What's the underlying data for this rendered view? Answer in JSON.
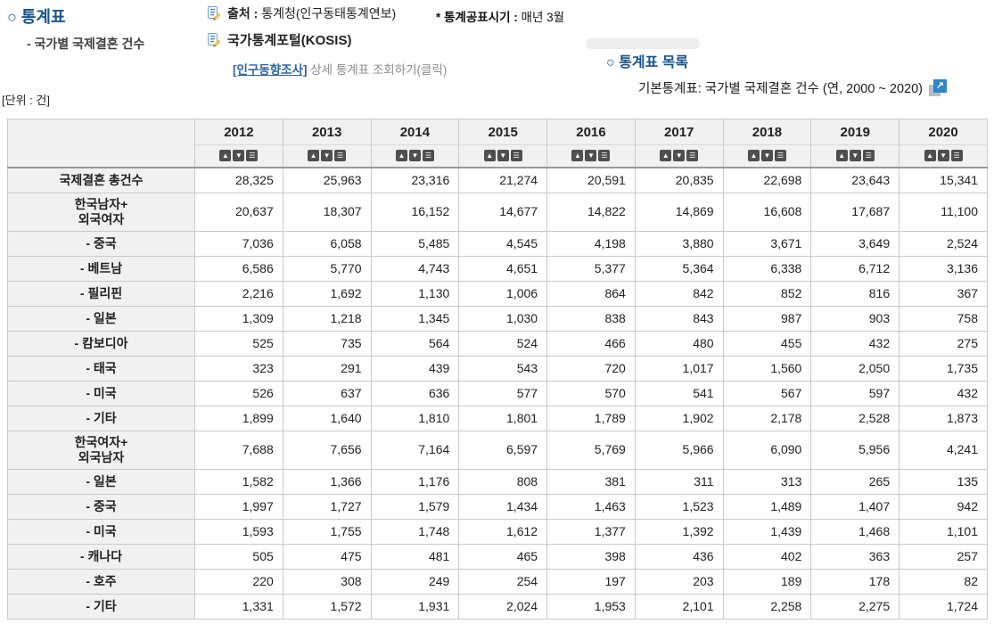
{
  "header": {
    "title": "○ 통계표",
    "subtitle": "- 국가별 국제결혼 건수",
    "source_label": "출처 :",
    "source_value": "통계청(인구동태통계연보)",
    "publish_label": "* 통계공표시기 :",
    "publish_value": "매년 3월",
    "portal_label": "국가통계포털(KOSIS)",
    "survey_link": "[인구동향조사]",
    "survey_link_suffix": " 상세 통계표 조회하기(클릭)",
    "list_title": "○ 통계표 목록",
    "list_item": "기본통계표: 국가별 국제결혼 건수 (연, 2000 ~ 2020)",
    "unit": "[단위 : 건]"
  },
  "icons": {
    "external_link_glyph": "↗"
  },
  "colors": {
    "title_blue": "#17558c",
    "link_blue": "#2e64a0",
    "header_bg": "#f1f1f1",
    "ext_icon_blue": "#2f86c8"
  },
  "table": {
    "years": [
      "2012",
      "2013",
      "2014",
      "2015",
      "2016",
      "2017",
      "2018",
      "2019",
      "2020"
    ],
    "sort_glyphs": [
      "▲",
      "▼",
      "☰"
    ],
    "rows": [
      {
        "label": "국제결혼 총건수",
        "values": [
          "28,325",
          "25,963",
          "23,316",
          "21,274",
          "20,591",
          "20,835",
          "22,698",
          "23,643",
          "15,341"
        ]
      },
      {
        "label": "한국남자+\n외국여자",
        "values": [
          "20,637",
          "18,307",
          "16,152",
          "14,677",
          "14,822",
          "14,869",
          "16,608",
          "17,687",
          "11,100"
        ]
      },
      {
        "label": "- 중국",
        "values": [
          "7,036",
          "6,058",
          "5,485",
          "4,545",
          "4,198",
          "3,880",
          "3,671",
          "3,649",
          "2,524"
        ]
      },
      {
        "label": "- 베트남",
        "values": [
          "6,586",
          "5,770",
          "4,743",
          "4,651",
          "5,377",
          "5,364",
          "6,338",
          "6,712",
          "3,136"
        ]
      },
      {
        "label": "- 필리핀",
        "values": [
          "2,216",
          "1,692",
          "1,130",
          "1,006",
          "864",
          "842",
          "852",
          "816",
          "367"
        ]
      },
      {
        "label": "- 일본",
        "values": [
          "1,309",
          "1,218",
          "1,345",
          "1,030",
          "838",
          "843",
          "987",
          "903",
          "758"
        ]
      },
      {
        "label": "- 캄보디아",
        "values": [
          "525",
          "735",
          "564",
          "524",
          "466",
          "480",
          "455",
          "432",
          "275"
        ]
      },
      {
        "label": "- 태국",
        "values": [
          "323",
          "291",
          "439",
          "543",
          "720",
          "1,017",
          "1,560",
          "2,050",
          "1,735"
        ]
      },
      {
        "label": "- 미국",
        "values": [
          "526",
          "637",
          "636",
          "577",
          "570",
          "541",
          "567",
          "597",
          "432"
        ]
      },
      {
        "label": "- 기타",
        "values": [
          "1,899",
          "1,640",
          "1,810",
          "1,801",
          "1,789",
          "1,902",
          "2,178",
          "2,528",
          "1,873"
        ]
      },
      {
        "label": "한국여자+\n외국남자",
        "values": [
          "7,688",
          "7,656",
          "7,164",
          "6,597",
          "5,769",
          "5,966",
          "6,090",
          "5,956",
          "4,241"
        ]
      },
      {
        "label": "- 일본",
        "values": [
          "1,582",
          "1,366",
          "1,176",
          "808",
          "381",
          "311",
          "313",
          "265",
          "135"
        ]
      },
      {
        "label": "- 중국",
        "values": [
          "1,997",
          "1,727",
          "1,579",
          "1,434",
          "1,463",
          "1,523",
          "1,489",
          "1,407",
          "942"
        ]
      },
      {
        "label": "- 미국",
        "values": [
          "1,593",
          "1,755",
          "1,748",
          "1,612",
          "1,377",
          "1,392",
          "1,439",
          "1,468",
          "1,101"
        ]
      },
      {
        "label": "- 캐나다",
        "values": [
          "505",
          "475",
          "481",
          "465",
          "398",
          "436",
          "402",
          "363",
          "257"
        ]
      },
      {
        "label": "- 호주",
        "values": [
          "220",
          "308",
          "249",
          "254",
          "197",
          "203",
          "189",
          "178",
          "82"
        ]
      },
      {
        "label": "- 기타",
        "values": [
          "1,331",
          "1,572",
          "1,931",
          "2,024",
          "1,953",
          "2,101",
          "2,258",
          "2,275",
          "1,724"
        ]
      }
    ]
  }
}
